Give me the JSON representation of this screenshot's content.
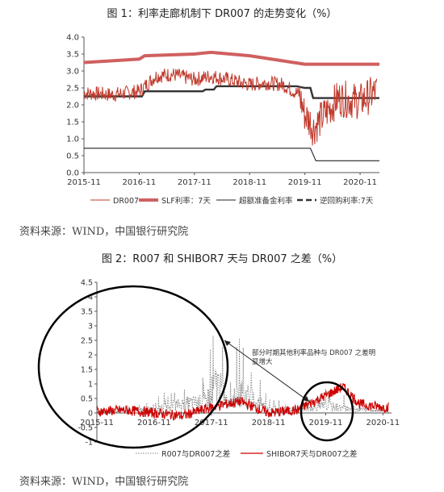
{
  "figure1": {
    "title": "图 1：利率走廊机制下 DR007 的走势变化（%）",
    "source": "资料来源：WIND，中国银行研究院",
    "legend": [
      "DR007",
      "SLF利率：7天",
      "超额准备金利率",
      "逆回购利率:7天"
    ],
    "colors": {
      "dr007": "#c0392b",
      "slf": "#d06060",
      "excess": "#222222",
      "reverse": "#333333"
    }
  },
  "figure2": {
    "title": "图 2：R007 和 SHIBOR7 天与 DR007 之差（%）",
    "source": "资料来源：WIND，中国银行研究院",
    "annotation": "部分时期其他利率品种与 DR007 之差明显增大",
    "legend": [
      "R007与DR007之差",
      "SHIBOR7天与DR007之差"
    ],
    "colors": {
      "r007": "#888888",
      "shibor": "#cc0000",
      "ellipse": "#000000"
    }
  },
  "chart_data": [
    {
      "type": "line",
      "x_ticks": [
        "2015-11",
        "2016-11",
        "2017-11",
        "2018-11",
        "2019-11",
        "2020-11"
      ],
      "ylim": [
        0,
        4
      ],
      "y_ticks": [
        "0.0",
        "0.5",
        "1.0",
        "1.5",
        "2.0",
        "2.5",
        "3.0",
        "3.5",
        "4.0"
      ],
      "series": [
        {
          "name": "SLF利率：7天",
          "x": [
            0,
            1,
            1.1,
            2,
            2.3,
            3,
            4,
            5,
            5.35
          ],
          "y": [
            3.25,
            3.35,
            3.45,
            3.5,
            3.55,
            3.45,
            3.2,
            3.2,
            3.2
          ]
        },
        {
          "name": "超额准备金利率",
          "x": [
            0,
            4.1,
            4.2,
            5.35
          ],
          "y": [
            0.72,
            0.72,
            0.35,
            0.35
          ]
        },
        {
          "name": "逆回购利率:7天",
          "x": [
            0,
            1.05,
            1.1,
            2.15,
            2.2,
            2.35,
            2.4,
            3.85,
            4.0,
            4.1,
            4.15,
            5.35
          ],
          "y": [
            2.25,
            2.25,
            2.4,
            2.4,
            2.45,
            2.45,
            2.55,
            2.55,
            2.5,
            2.5,
            2.2,
            2.2
          ]
        },
        {
          "name": "DR007",
          "x": [
            0,
            0.5,
            1.0,
            1.3,
            1.6,
            2.0,
            2.3,
            2.6,
            3.0,
            3.3,
            3.6,
            3.9,
            4.0,
            4.1,
            4.15,
            4.3,
            4.6,
            5.0,
            5.3
          ],
          "y": [
            2.35,
            2.3,
            2.4,
            2.85,
            2.9,
            2.75,
            2.85,
            2.75,
            2.6,
            2.65,
            2.6,
            2.3,
            1.7,
            1.5,
            1.3,
            1.6,
            2.2,
            2.1,
            2.4
          ]
        }
      ]
    },
    {
      "type": "line",
      "x_ticks": [
        "2015-11",
        "2016-11",
        "2017-11",
        "2018-11",
        "2019-11",
        "2020-11"
      ],
      "ylim": [
        -1,
        4.5
      ],
      "y_ticks": [
        "-1",
        "-0.5",
        "0",
        "0.5",
        "1",
        "1.5",
        "2",
        "2.5",
        "3",
        "3.5",
        "4",
        "4.5"
      ],
      "series": [
        {
          "name": "R007与DR007之差",
          "x": [
            0,
            0.5,
            1.0,
            1.5,
            1.9,
            2.1,
            2.3,
            2.5,
            3.0,
            3.5,
            4.0,
            4.5,
            5.0
          ],
          "y": [
            0.1,
            0.3,
            0.5,
            1.2,
            1.5,
            4.0,
            1.0,
            2.8,
            0.6,
            0.4,
            0.9,
            0.5,
            0.4
          ]
        },
        {
          "name": "SHIBOR7天与DR007之差",
          "x": [
            0,
            0.5,
            1.0,
            1.5,
            2.0,
            2.5,
            3.0,
            3.5,
            4.0,
            4.3,
            4.6,
            5.0
          ],
          "y": [
            0.05,
            0.1,
            0.0,
            -0.1,
            0.2,
            0.4,
            0.0,
            0.1,
            0.6,
            0.9,
            0.3,
            0.2
          ]
        }
      ]
    }
  ]
}
